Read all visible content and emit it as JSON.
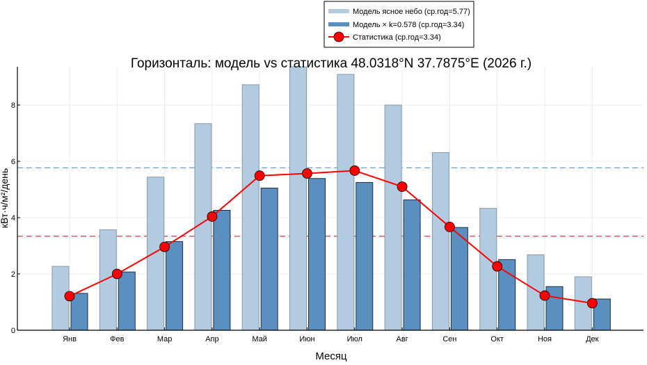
{
  "chart_data": {
    "type": "bar",
    "title": "Горизонталь: модель vs статистика 48.0318°N  37.7875°E  (2026 г.)",
    "xlabel": "Месяц",
    "ylabel": "кВт·ч/м²/день",
    "ylim": [
      0,
      9.36
    ],
    "yticks": [
      0,
      2,
      4,
      6,
      8
    ],
    "grid": true,
    "legend_placement": "top-center outside",
    "categories": [
      "Янв",
      "Фев",
      "Мар",
      "Апр",
      "Май",
      "Июн",
      "Июл",
      "Авг",
      "Сен",
      "Окт",
      "Ноя",
      "Дек"
    ],
    "series": [
      {
        "name": "Модель ясное небо (ср.год=5.77)",
        "kind": "bar",
        "color": "#b3cbe0",
        "values": [
          2.27,
          3.57,
          5.44,
          7.34,
          8.72,
          9.36,
          9.09,
          8.0,
          6.31,
          4.33,
          2.68,
          1.9
        ]
      },
      {
        "name": "Модель × k=0.578 (ср.год=3.34)",
        "kind": "bar",
        "color": "#5a8fbf",
        "values": [
          1.31,
          2.07,
          3.15,
          4.26,
          5.05,
          5.39,
          5.25,
          4.63,
          3.65,
          2.51,
          1.55,
          1.11
        ]
      },
      {
        "name": "Статистика (ср.год=3.34)",
        "kind": "line",
        "color": "#ff0000",
        "values": [
          1.21,
          2.0,
          2.96,
          4.04,
          5.49,
          5.57,
          5.67,
          5.1,
          3.67,
          2.27,
          1.23,
          0.96
        ]
      }
    ],
    "reference_lines": [
      {
        "value": 5.77,
        "color": "#6f9fd0",
        "style": "dashed"
      },
      {
        "value": 3.34,
        "color": "#d04040",
        "style": "dashed"
      }
    ]
  }
}
